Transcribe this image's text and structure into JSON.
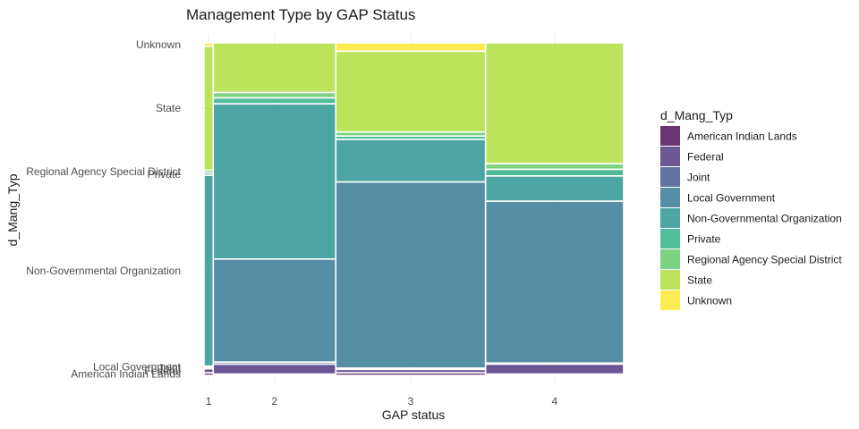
{
  "chart_data": {
    "type": "mosaic",
    "title": "Management Type by GAP Status",
    "xlabel": "GAP status",
    "ylabel": "d_Mang_Typ",
    "legend_title": "d_Mang_Typ",
    "legend_position": "right",
    "grid": true,
    "categories": [
      "1",
      "2",
      "3",
      "4"
    ],
    "column_weights": [
      0.022,
      0.292,
      0.357,
      0.329
    ],
    "levels": [
      "American Indian Lands",
      "Federal",
      "Joint",
      "Local Government",
      "Non-Governmental Organization",
      "Private",
      "Regional Agency Special District",
      "State",
      "Unknown"
    ],
    "y_tick_labels": [
      "American Indian Lands",
      "Federal",
      "Joint",
      "Local Government",
      "Non-Governmental Organization",
      "Private",
      "Regional Agency Special District",
      "State",
      "Unknown"
    ],
    "colors": [
      "#440154",
      "#472D7B",
      "#3B528B",
      "#2C728E",
      "#21908C",
      "#27AD81",
      "#5DC863",
      "#AADC32",
      "#FDE725"
    ],
    "series": [
      {
        "name": "American Indian Lands",
        "values": [
          0.008,
          0.004,
          0.008,
          0.004
        ]
      },
      {
        "name": "Federal",
        "values": [
          0.012,
          0.03,
          0.01,
          0.03
        ]
      },
      {
        "name": "Joint",
        "values": [
          0.004,
          0.006,
          0.004,
          0.003
        ]
      },
      {
        "name": "Local Government",
        "values": [
          0.004,
          0.31,
          0.56,
          0.487
        ]
      },
      {
        "name": "Non-Governmental Organization",
        "values": [
          0.574,
          0.467,
          0.128,
          0.076
        ]
      },
      {
        "name": "Private",
        "values": [
          0.007,
          0.018,
          0.01,
          0.02
        ]
      },
      {
        "name": "Regional Agency Special District",
        "values": [
          0.008,
          0.016,
          0.012,
          0.017
        ]
      },
      {
        "name": "State",
        "values": [
          0.373,
          0.149,
          0.243,
          0.363
        ]
      },
      {
        "name": "Unknown",
        "values": [
          0.01,
          0.0,
          0.025,
          0.0
        ]
      }
    ]
  }
}
